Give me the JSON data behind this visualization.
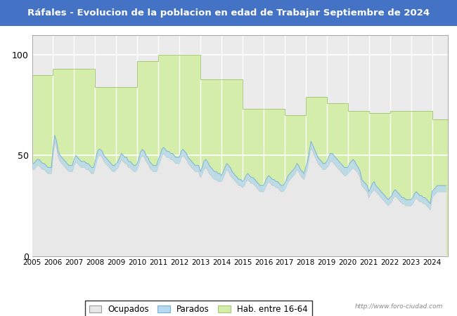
{
  "title": "Ráfales - Evolucion de la poblacion en edad de Trabajar Septiembre de 2024",
  "title_bg": "#4472c4",
  "title_color": "white",
  "watermark": "http://www.foro-ciudad.com",
  "legend_labels": [
    "Ocupados",
    "Parados",
    "Hab. entre 16-64"
  ],
  "years": [
    2005,
    2006,
    2007,
    2008,
    2009,
    2010,
    2011,
    2012,
    2013,
    2014,
    2015,
    2016,
    2017,
    2018,
    2019,
    2020,
    2021,
    2022,
    2023,
    2024
  ],
  "hab1664": [
    90,
    93,
    93,
    84,
    84,
    97,
    100,
    100,
    88,
    88,
    73,
    73,
    70,
    79,
    76,
    72,
    71,
    72,
    72,
    68
  ],
  "hab1664_end_month": [
    12,
    12,
    12,
    12,
    12,
    12,
    12,
    12,
    12,
    12,
    12,
    12,
    12,
    12,
    12,
    12,
    12,
    12,
    12,
    9
  ],
  "ocupados_monthly": [
    43,
    43,
    44,
    45,
    45,
    44,
    43,
    43,
    42,
    41,
    41,
    41,
    50,
    57,
    54,
    49,
    47,
    46,
    45,
    44,
    43,
    42,
    42,
    42,
    45,
    47,
    46,
    45,
    44,
    44,
    44,
    43,
    43,
    42,
    41,
    41,
    44,
    48,
    50,
    50,
    49,
    47,
    46,
    45,
    44,
    43,
    42,
    42,
    43,
    44,
    46,
    48,
    47,
    46,
    46,
    44,
    44,
    43,
    42,
    42,
    43,
    46,
    49,
    50,
    49,
    47,
    46,
    44,
    43,
    42,
    42,
    42,
    45,
    47,
    50,
    51,
    50,
    49,
    49,
    48,
    48,
    47,
    46,
    46,
    46,
    49,
    50,
    49,
    48,
    46,
    45,
    44,
    43,
    42,
    42,
    42,
    39,
    41,
    43,
    44,
    43,
    41,
    40,
    39,
    38,
    38,
    37,
    37,
    37,
    39,
    41,
    43,
    42,
    40,
    39,
    38,
    37,
    36,
    35,
    35,
    34,
    35,
    37,
    38,
    37,
    36,
    36,
    35,
    34,
    33,
    32,
    32,
    32,
    34,
    36,
    37,
    36,
    35,
    35,
    34,
    34,
    33,
    32,
    32,
    33,
    35,
    37,
    38,
    39,
    40,
    41,
    43,
    42,
    40,
    39,
    38,
    41,
    44,
    49,
    54,
    52,
    50,
    48,
    46,
    45,
    44,
    43,
    43,
    44,
    45,
    47,
    47,
    46,
    45,
    44,
    43,
    42,
    41,
    40,
    40,
    41,
    42,
    43,
    44,
    43,
    42,
    41,
    39,
    35,
    34,
    33,
    32,
    29,
    31,
    32,
    33,
    32,
    31,
    30,
    29,
    28,
    27,
    26,
    25,
    26,
    27,
    29,
    30,
    29,
    28,
    27,
    26,
    26,
    25,
    25,
    25,
    25,
    26,
    28,
    29,
    28,
    27,
    27,
    26,
    26,
    25,
    24,
    23,
    29,
    30,
    31,
    32,
    32,
    32,
    32,
    32,
    32
  ],
  "parados_monthly": [
    46,
    46,
    47,
    48,
    48,
    47,
    46,
    46,
    45,
    44,
    44,
    44,
    53,
    60,
    57,
    52,
    50,
    49,
    48,
    47,
    46,
    45,
    45,
    45,
    48,
    50,
    49,
    48,
    47,
    47,
    47,
    46,
    46,
    45,
    44,
    44,
    47,
    51,
    53,
    53,
    52,
    50,
    49,
    48,
    47,
    46,
    45,
    45,
    46,
    47,
    49,
    51,
    50,
    49,
    49,
    47,
    47,
    46,
    45,
    45,
    46,
    49,
    52,
    53,
    52,
    50,
    49,
    47,
    46,
    45,
    45,
    45,
    48,
    50,
    53,
    54,
    53,
    52,
    52,
    51,
    51,
    50,
    49,
    49,
    49,
    52,
    53,
    52,
    51,
    49,
    48,
    47,
    46,
    45,
    45,
    45,
    42,
    44,
    47,
    48,
    47,
    45,
    44,
    43,
    42,
    42,
    41,
    41,
    40,
    42,
    44,
    46,
    45,
    44,
    42,
    41,
    40,
    39,
    38,
    38,
    37,
    38,
    40,
    41,
    40,
    39,
    39,
    38,
    37,
    36,
    35,
    35,
    35,
    37,
    39,
    40,
    39,
    38,
    38,
    37,
    37,
    36,
    35,
    35,
    36,
    38,
    40,
    41,
    42,
    43,
    44,
    46,
    45,
    43,
    42,
    41,
    44,
    47,
    52,
    57,
    55,
    53,
    51,
    49,
    48,
    47,
    46,
    46,
    47,
    49,
    51,
    51,
    50,
    49,
    48,
    47,
    46,
    45,
    44,
    44,
    44,
    46,
    47,
    48,
    47,
    45,
    44,
    42,
    38,
    37,
    36,
    35,
    32,
    34,
    36,
    37,
    35,
    34,
    33,
    32,
    31,
    30,
    29,
    28,
    29,
    30,
    32,
    33,
    32,
    31,
    30,
    29,
    29,
    28,
    28,
    28,
    28,
    29,
    31,
    32,
    31,
    30,
    30,
    29,
    29,
    28,
    27,
    26,
    32,
    33,
    34,
    35,
    35,
    35,
    35,
    35,
    35
  ]
}
